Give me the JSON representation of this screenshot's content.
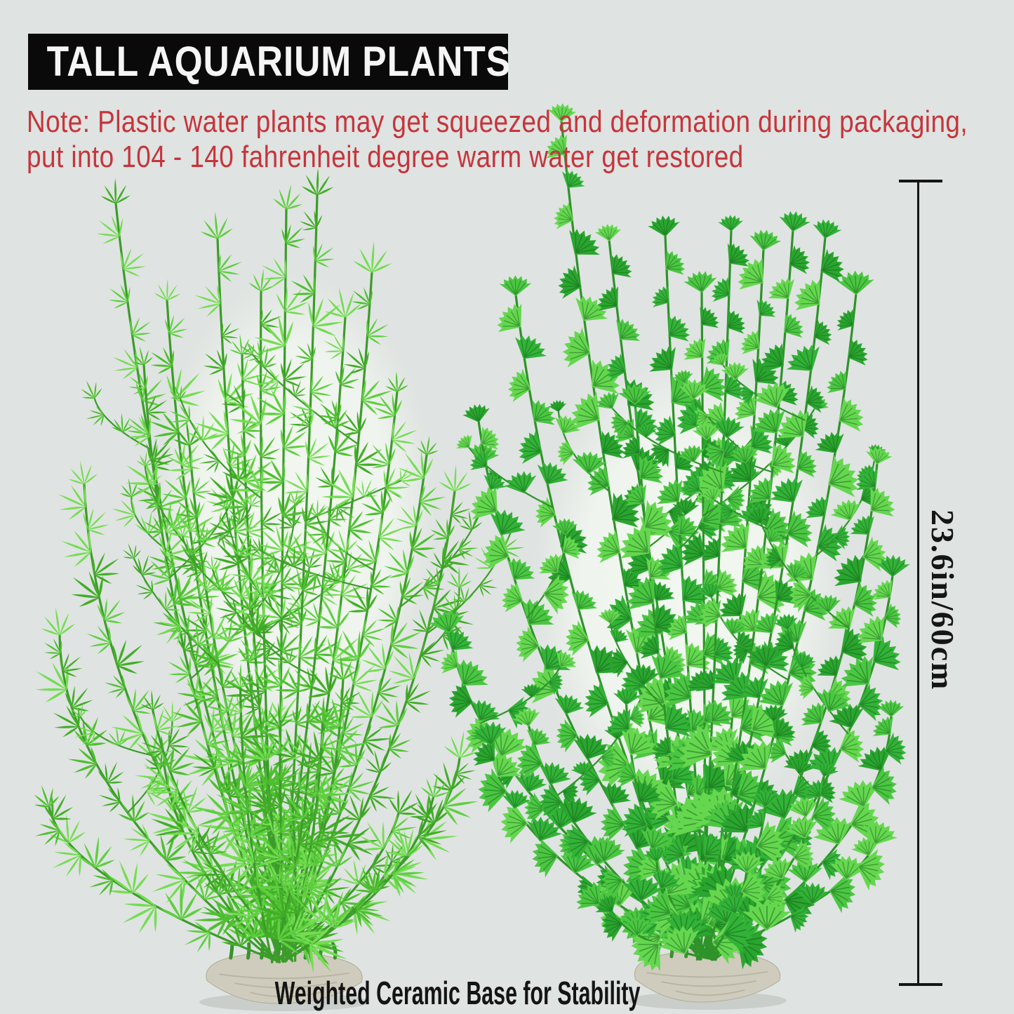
{
  "banner": {
    "title": "TALL AQUARIUM PLANTS"
  },
  "note": {
    "line1": "Note: Plastic water plants may get squeezed and deformation during packaging,",
    "line2": "put into 104 - 140 fahrenheit degree warm water get restored"
  },
  "measurement": {
    "label": "23.6in/60cm"
  },
  "caption": {
    "text": "Weighted Ceramic Base for Stability"
  },
  "colors": {
    "background": "#dfe3e1",
    "banner_bg": "#0a0a0a",
    "banner_text": "#f5f5f5",
    "note_text": "#c5353c",
    "measurement": "#151515",
    "caption_text": "#141414",
    "glow": "#f2f7f0",
    "leaf_left": [
      "#4fbf31",
      "#5ecf3f",
      "#74dd52",
      "#42ad27"
    ],
    "stem_left": "#3c9c2a",
    "leaf_right": [
      "#33b238",
      "#4bc642",
      "#65d74f",
      "#2aa52f"
    ],
    "stem_right": "#2e9329",
    "base_fill": "#cfccbd",
    "base_shadow": "#aeab99",
    "base_stub": "#36942c"
  }
}
